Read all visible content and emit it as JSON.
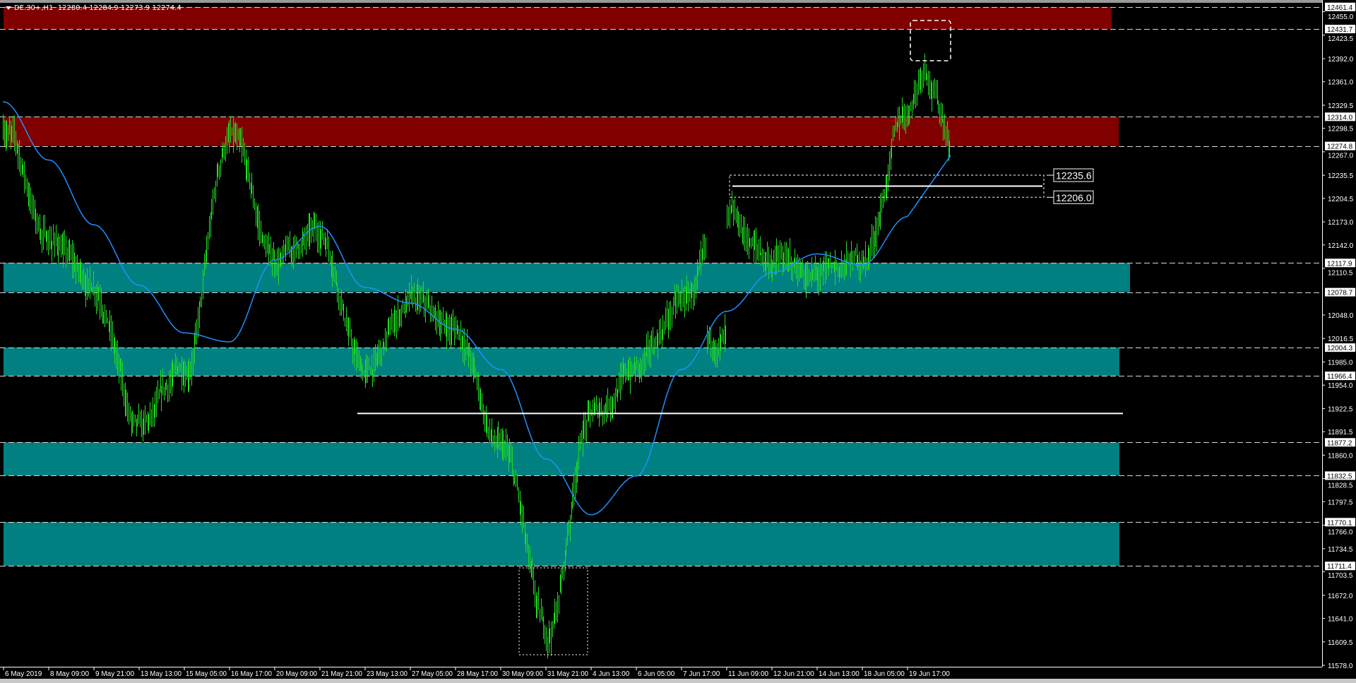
{
  "header": {
    "symbol": "DE.30+,H1",
    "ohlc": "12280.4 12284.9 12273.9 12274.4"
  },
  "colors": {
    "background": "#000000",
    "bars": "#22dd22",
    "ma": "#1e90ff",
    "resistance_zone": "#800000",
    "support_zone": "#008080",
    "axis": "#ffffff"
  },
  "chart_data": {
    "type": "bar",
    "subtype": "ohlc-hourly",
    "ylim": [
      11578.0,
      12461.4
    ],
    "y_ticks": [
      "12455.0",
      "12423.5",
      "12392.0",
      "12361.0",
      "12329.5",
      "12298.5",
      "12267.0",
      "12235.5",
      "12204.5",
      "12173.0",
      "12142.0",
      "12110.5",
      "12048.0",
      "12016.5",
      "11985.0",
      "11954.0",
      "11922.5",
      "11891.5",
      "11860.0",
      "11828.5",
      "11797.5",
      "11766.0",
      "11734.5",
      "11703.5",
      "11672.0",
      "11641.0",
      "11609.5",
      "11578.0"
    ],
    "x_ticks": [
      "6 May 2019",
      "8 May 09:00",
      "9 May 21:00",
      "13 May 13:00",
      "15 May 05:00",
      "16 May 17:00",
      "20 May 09:00",
      "21 May 21:00",
      "23 May 13:00",
      "27 May 05:00",
      "28 May 17:00",
      "30 May 09:00",
      "31 May 21:00",
      "4 Jun 13:00",
      "6 Jun 05:00",
      "7 Jun 17:00",
      "11 Jun 09:00",
      "12 Jun 21:00",
      "14 Jun 13:00",
      "18 Jun 05:00",
      "19 Jun 17:00"
    ],
    "close_at_ticks": [
      12300,
      12150,
      12088,
      11890,
      11975,
      12285,
      12122,
      12157,
      11971,
      12064,
      12029,
      11867,
      11658,
      11913,
      11975,
      12064,
      12169,
      12122,
      12099,
      12122,
      12320
    ],
    "ma_at_ticks": [
      12334,
      12256,
      12169,
      12088,
      12024,
      12012,
      12122,
      12167,
      12085,
      12064,
      12029,
      11975,
      11855,
      11780,
      11832,
      11975,
      12053,
      12105,
      12130,
      12115,
      12180
    ],
    "last_bar": {
      "open": 12280.4,
      "high": 12284.9,
      "low": 12273.9,
      "close": 12274.4
    },
    "period_high": 12422,
    "period_low": 11602,
    "zones": [
      {
        "kind": "resistance",
        "top": 12461.4,
        "bottom": 12431.7
      },
      {
        "kind": "resistance",
        "top": 12314.0,
        "bottom": 12274.8
      },
      {
        "kind": "support",
        "top": 12117.9,
        "bottom": 12078.7
      },
      {
        "kind": "support",
        "top": 12004.3,
        "bottom": 11966.4
      },
      {
        "kind": "support",
        "top": 11877.2,
        "bottom": 11832.5
      },
      {
        "kind": "support",
        "top": 11770.1,
        "bottom": 11711.4
      }
    ],
    "level_labels": [
      "12461.4",
      "12431.7",
      "12314.0",
      "12274.8",
      "12117.9",
      "12078.7",
      "12004.3",
      "11966.4",
      "11877.2",
      "11832.5",
      "11770.1",
      "11711.4"
    ],
    "hlines": [
      11916,
      12221
    ],
    "range_box": {
      "top": 12235.6,
      "bottom": 12206.0,
      "top_label": "12235.6",
      "bottom_label": "12206.0"
    }
  }
}
